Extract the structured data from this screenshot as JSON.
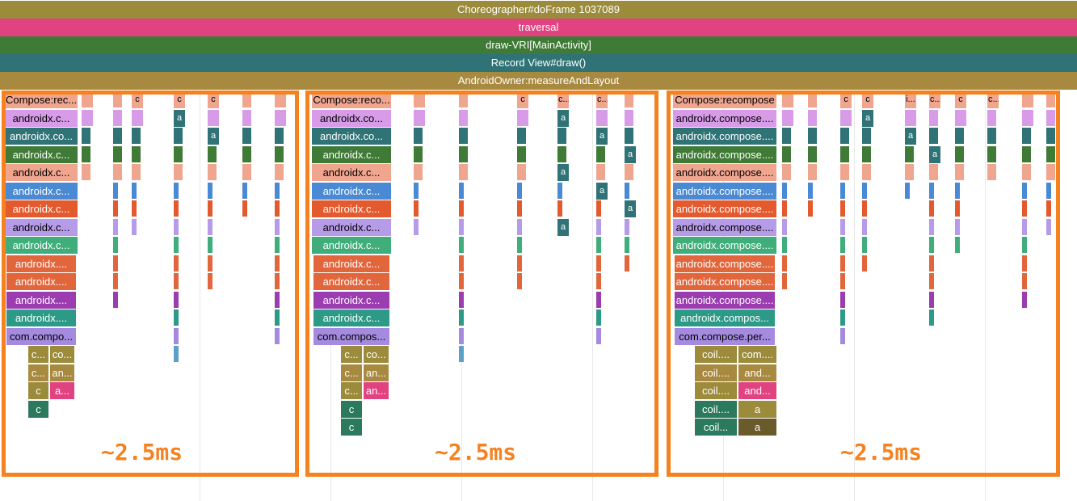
{
  "top_slices": [
    {
      "label": "Choreographer#doFrame 1037089",
      "color": "#9b8b3a"
    },
    {
      "label": "traversal",
      "color": "#e0437f"
    },
    {
      "label": "draw-VRI[MainActivity]",
      "color": "#3f7a36"
    },
    {
      "label": "Record View#draw()",
      "color": "#2f7376"
    },
    {
      "label": "AndroidOwner:measureAndLayout",
      "color": "#a88940"
    }
  ],
  "palette": {
    "olive": "#9b8b3a",
    "pink": "#e0437f",
    "green": "#3f7a36",
    "teal": "#2f7376",
    "gold": "#a88940",
    "peach": "#f0a58f",
    "lilac": "#d79be8",
    "blue": "#4a8ad4",
    "orange_red": "#e35a2f",
    "lavender": "#b69be8",
    "sea_green": "#3fae7a",
    "orange": "#e2663c",
    "purple": "#9b3cb0",
    "green_teal": "#2c9a86",
    "violet": "#a58be0",
    "highlight": "#f5821f"
  },
  "groups": [
    {
      "label": "~2.5ms",
      "slices": [
        {
          "text": "Compose:rec...",
          "color": "#f0a58f"
        },
        {
          "text": "androidx.c...",
          "color": "#d79be8"
        },
        {
          "text": "androidx.co...",
          "color": "#2f7376"
        },
        {
          "text": "androidx.c...",
          "color": "#3f7a36"
        },
        {
          "text": "androidx.c...",
          "color": "#f0a58f"
        },
        {
          "text": "androidx.c...",
          "color": "#4a8ad4"
        },
        {
          "text": "androidx.c...",
          "color": "#e35a2f"
        },
        {
          "text": "androidx.c...",
          "color": "#b69be8"
        },
        {
          "text": "androidx.c...",
          "color": "#3fae7a"
        },
        {
          "text": "androidx....",
          "color": "#e2663c"
        },
        {
          "text": "androidx....",
          "color": "#e2663c"
        },
        {
          "text": "androidx....",
          "color": "#9b3cb0"
        },
        {
          "text": "androidx....",
          "color": "#2c9a86"
        },
        {
          "text": "com.compo...",
          "color": "#a58be0"
        }
      ],
      "sub_a": [
        "c...",
        "c...",
        "c",
        "c"
      ],
      "sub_b": [
        "co...",
        "an...",
        "a..."
      ],
      "mini": [
        "c",
        "c",
        "c"
      ],
      "mini_b": [
        "a",
        "a"
      ]
    },
    {
      "label": "~2.5ms",
      "slices": [
        {
          "text": "Compose:reco...",
          "color": "#f0a58f"
        },
        {
          "text": "androidx.co...",
          "color": "#d79be8"
        },
        {
          "text": "androidx.co...",
          "color": "#2f7376"
        },
        {
          "text": "androidx.c...",
          "color": "#3f7a36"
        },
        {
          "text": "androidx.c...",
          "color": "#f0a58f"
        },
        {
          "text": "androidx.c...",
          "color": "#4a8ad4"
        },
        {
          "text": "androidx.c...",
          "color": "#e35a2f"
        },
        {
          "text": "androidx.c...",
          "color": "#b69be8"
        },
        {
          "text": "androidx.c...",
          "color": "#3fae7a"
        },
        {
          "text": "androidx.c...",
          "color": "#e2663c"
        },
        {
          "text": "androidx.c...",
          "color": "#e2663c"
        },
        {
          "text": "androidx.c...",
          "color": "#9b3cb0"
        },
        {
          "text": "androidx.c...",
          "color": "#2c9a86"
        },
        {
          "text": "com.compos...",
          "color": "#a58be0"
        }
      ],
      "sub_a": [
        "c...",
        "c...",
        "c...",
        "c",
        "c"
      ],
      "sub_b": [
        "co...",
        "an...",
        "an..."
      ],
      "mini": [
        "c",
        "c...",
        "c..."
      ],
      "mini_b": [
        "a",
        "a",
        "a",
        "a",
        "a",
        "a",
        "a"
      ]
    },
    {
      "label": "~2.5ms",
      "slices": [
        {
          "text": "Compose:recompose",
          "color": "#f0a58f"
        },
        {
          "text": "androidx.compose....",
          "color": "#d79be8"
        },
        {
          "text": "androidx.compose....",
          "color": "#2f7376"
        },
        {
          "text": "androidx.compose....",
          "color": "#3f7a36"
        },
        {
          "text": "androidx.compose....",
          "color": "#f0a58f"
        },
        {
          "text": "androidx.compose....",
          "color": "#4a8ad4"
        },
        {
          "text": "androidx.compose....",
          "color": "#e35a2f"
        },
        {
          "text": "androidx.compose....",
          "color": "#b69be8"
        },
        {
          "text": "androidx.compose....",
          "color": "#3fae7a"
        },
        {
          "text": "androidx.compose....",
          "color": "#e2663c"
        },
        {
          "text": "androidx.compose....",
          "color": "#e2663c"
        },
        {
          "text": "androidx.compose....",
          "color": "#9b3cb0"
        },
        {
          "text": "androidx.compos...",
          "color": "#2c9a86"
        },
        {
          "text": "com.compose.per...",
          "color": "#a58be0"
        }
      ],
      "sub_a": [
        "coil....",
        "coil....",
        "coil....",
        "coil....",
        "coil..."
      ],
      "sub_b": [
        "com....",
        "and...",
        "and...",
        "a",
        "a"
      ],
      "mini": [
        "c",
        "c",
        "i...",
        "c...",
        "c",
        "c..."
      ],
      "mini_b": [
        "a",
        "a",
        "a"
      ]
    }
  ]
}
